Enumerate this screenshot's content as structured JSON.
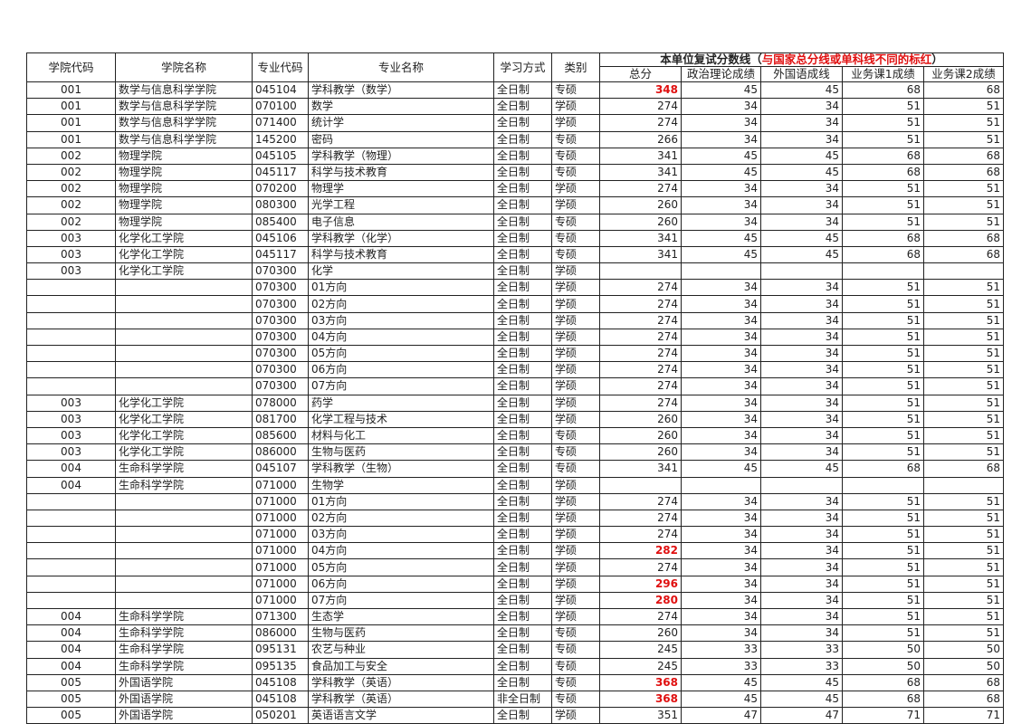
{
  "header": {
    "college_code": "学院代码",
    "college_name": "学院名称",
    "major_code": "专业代码",
    "major_name": "专业名称",
    "study_mode": "学习方式",
    "category": "类别",
    "score_group": "本单位复试分数线（",
    "score_group_note": "与国家总分线或单科线不同的标红",
    "score_group_end": "）",
    "total": "总分",
    "politics": "政治理论成绩",
    "foreign_lang": "外国语成线",
    "course1": "业务课1成绩",
    "course2": "业务课2成绩"
  },
  "highlight_color": "#e01010",
  "rows": [
    [
      "001",
      "数学与信息科学学院",
      "045104",
      "学科教学（数学）",
      "全日制",
      "专硕",
      "348",
      "45",
      "45",
      "68",
      "68",
      true
    ],
    [
      "001",
      "数学与信息科学学院",
      "070100",
      "数学",
      "全日制",
      "学硕",
      "274",
      "34",
      "34",
      "51",
      "51",
      false
    ],
    [
      "001",
      "数学与信息科学学院",
      "071400",
      "统计学",
      "全日制",
      "学硕",
      "274",
      "34",
      "34",
      "51",
      "51",
      false
    ],
    [
      "001",
      "数学与信息科学学院",
      "145200",
      "密码",
      "全日制",
      "专硕",
      "266",
      "34",
      "34",
      "51",
      "51",
      false
    ],
    [
      "002",
      "物理学院",
      "045105",
      "学科教学（物理）",
      "全日制",
      "专硕",
      "341",
      "45",
      "45",
      "68",
      "68",
      false
    ],
    [
      "002",
      "物理学院",
      "045117",
      "科学与技术教育",
      "全日制",
      "专硕",
      "341",
      "45",
      "45",
      "68",
      "68",
      false
    ],
    [
      "002",
      "物理学院",
      "070200",
      "物理学",
      "全日制",
      "学硕",
      "274",
      "34",
      "34",
      "51",
      "51",
      false
    ],
    [
      "002",
      "物理学院",
      "080300",
      "光学工程",
      "全日制",
      "学硕",
      "260",
      "34",
      "34",
      "51",
      "51",
      false
    ],
    [
      "002",
      "物理学院",
      "085400",
      "电子信息",
      "全日制",
      "专硕",
      "260",
      "34",
      "34",
      "51",
      "51",
      false
    ],
    [
      "003",
      "化学化工学院",
      "045106",
      "学科教学（化学）",
      "全日制",
      "专硕",
      "341",
      "45",
      "45",
      "68",
      "68",
      false
    ],
    [
      "003",
      "化学化工学院",
      "045117",
      "科学与技术教育",
      "全日制",
      "专硕",
      "341",
      "45",
      "45",
      "68",
      "68",
      false
    ],
    [
      "003",
      "化学化工学院",
      "070300",
      "化学",
      "全日制",
      "学硕",
      "",
      "",
      "",
      "",
      "",
      false
    ],
    [
      "",
      "",
      "070300",
      "01方向",
      "全日制",
      "学硕",
      "274",
      "34",
      "34",
      "51",
      "51",
      false
    ],
    [
      "",
      "",
      "070300",
      "02方向",
      "全日制",
      "学硕",
      "274",
      "34",
      "34",
      "51",
      "51",
      false
    ],
    [
      "",
      "",
      "070300",
      "03方向",
      "全日制",
      "学硕",
      "274",
      "34",
      "34",
      "51",
      "51",
      false
    ],
    [
      "",
      "",
      "070300",
      "04方向",
      "全日制",
      "学硕",
      "274",
      "34",
      "34",
      "51",
      "51",
      false
    ],
    [
      "",
      "",
      "070300",
      "05方向",
      "全日制",
      "学硕",
      "274",
      "34",
      "34",
      "51",
      "51",
      false
    ],
    [
      "",
      "",
      "070300",
      "06方向",
      "全日制",
      "学硕",
      "274",
      "34",
      "34",
      "51",
      "51",
      false
    ],
    [
      "",
      "",
      "070300",
      "07方向",
      "全日制",
      "学硕",
      "274",
      "34",
      "34",
      "51",
      "51",
      false
    ],
    [
      "003",
      "化学化工学院",
      "078000",
      "药学",
      "全日制",
      "学硕",
      "274",
      "34",
      "34",
      "51",
      "51",
      false
    ],
    [
      "003",
      "化学化工学院",
      "081700",
      "化学工程与技术",
      "全日制",
      "学硕",
      "260",
      "34",
      "34",
      "51",
      "51",
      false
    ],
    [
      "003",
      "化学化工学院",
      "085600",
      "材料与化工",
      "全日制",
      "专硕",
      "260",
      "34",
      "34",
      "51",
      "51",
      false
    ],
    [
      "003",
      "化学化工学院",
      "086000",
      "生物与医药",
      "全日制",
      "专硕",
      "260",
      "34",
      "34",
      "51",
      "51",
      false
    ],
    [
      "004",
      "生命科学学院",
      "045107",
      "学科教学（生物）",
      "全日制",
      "专硕",
      "341",
      "45",
      "45",
      "68",
      "68",
      false
    ],
    [
      "004",
      "生命科学学院",
      "071000",
      "生物学",
      "全日制",
      "学硕",
      "",
      "",
      "",
      "",
      "",
      false
    ],
    [
      "",
      "",
      "071000",
      "01方向",
      "全日制",
      "学硕",
      "274",
      "34",
      "34",
      "51",
      "51",
      false
    ],
    [
      "",
      "",
      "071000",
      "02方向",
      "全日制",
      "学硕",
      "274",
      "34",
      "34",
      "51",
      "51",
      false
    ],
    [
      "",
      "",
      "071000",
      "03方向",
      "全日制",
      "学硕",
      "274",
      "34",
      "34",
      "51",
      "51",
      false
    ],
    [
      "",
      "",
      "071000",
      "04方向",
      "全日制",
      "学硕",
      "282",
      "34",
      "34",
      "51",
      "51",
      true
    ],
    [
      "",
      "",
      "071000",
      "05方向",
      "全日制",
      "学硕",
      "274",
      "34",
      "34",
      "51",
      "51",
      false
    ],
    [
      "",
      "",
      "071000",
      "06方向",
      "全日制",
      "学硕",
      "296",
      "34",
      "34",
      "51",
      "51",
      true
    ],
    [
      "",
      "",
      "071000",
      "07方向",
      "全日制",
      "学硕",
      "280",
      "34",
      "34",
      "51",
      "51",
      true
    ],
    [
      "004",
      "生命科学学院",
      "071300",
      "生态学",
      "全日制",
      "学硕",
      "274",
      "34",
      "34",
      "51",
      "51",
      false
    ],
    [
      "004",
      "生命科学学院",
      "086000",
      "生物与医药",
      "全日制",
      "专硕",
      "260",
      "34",
      "34",
      "51",
      "51",
      false
    ],
    [
      "004",
      "生命科学学院",
      "095131",
      "农艺与种业",
      "全日制",
      "专硕",
      "245",
      "33",
      "33",
      "50",
      "50",
      false
    ],
    [
      "004",
      "生命科学学院",
      "095135",
      "食品加工与安全",
      "全日制",
      "专硕",
      "245",
      "33",
      "33",
      "50",
      "50",
      false
    ],
    [
      "005",
      "外国语学院",
      "045108",
      "学科教学（英语）",
      "全日制",
      "专硕",
      "368",
      "45",
      "45",
      "68",
      "68",
      true
    ],
    [
      "005",
      "外国语学院",
      "045108",
      "学科教学（英语）",
      "非全日制",
      "专硕",
      "368",
      "45",
      "45",
      "68",
      "68",
      true
    ],
    [
      "005",
      "外国语学院",
      "050201",
      "英语语言文学",
      "全日制",
      "学硕",
      "351",
      "47",
      "47",
      "71",
      "71",
      false
    ]
  ]
}
